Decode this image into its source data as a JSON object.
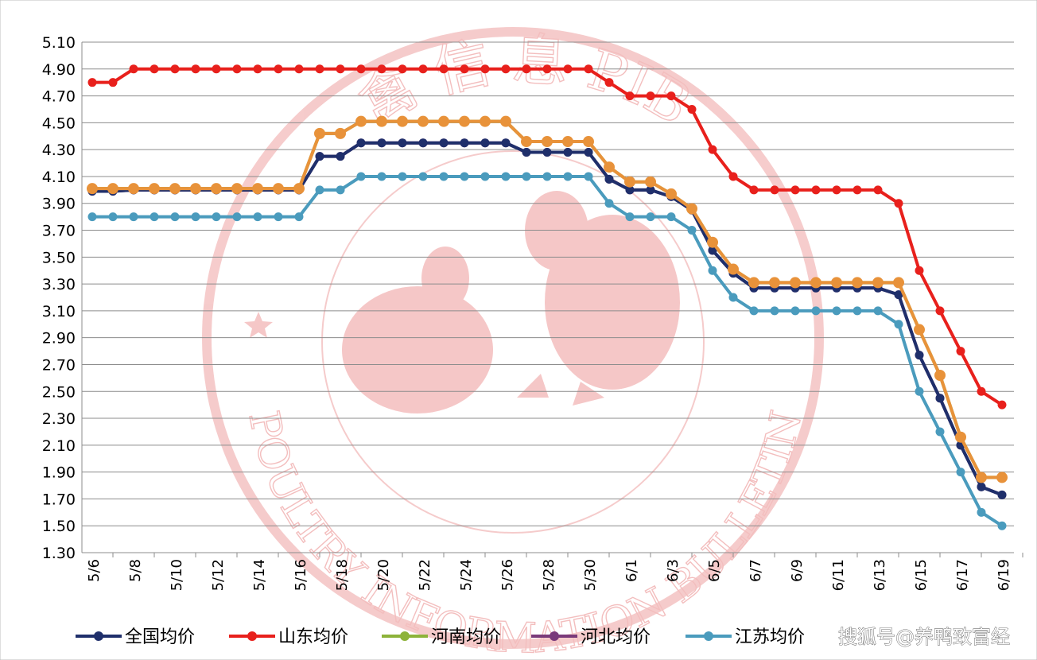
{
  "chart_data": {
    "type": "line",
    "title": "",
    "xlabel": "",
    "ylabel": "",
    "ylim": [
      1.3,
      5.1
    ],
    "yticks": [
      "1.30",
      "1.50",
      "1.70",
      "1.90",
      "2.10",
      "2.30",
      "2.50",
      "2.70",
      "2.90",
      "3.10",
      "3.30",
      "3.50",
      "3.70",
      "3.90",
      "4.10",
      "4.30",
      "4.50",
      "4.70",
      "4.90",
      "5.10"
    ],
    "x": [
      "5/6",
      "5/7",
      "5/8",
      "5/9",
      "5/10",
      "5/11",
      "5/12",
      "5/13",
      "5/14",
      "5/15",
      "5/16",
      "5/17",
      "5/18",
      "5/19",
      "5/20",
      "5/21",
      "5/22",
      "5/23",
      "5/24",
      "5/25",
      "5/26",
      "5/27",
      "5/28",
      "5/29",
      "5/30",
      "5/31",
      "6/1",
      "6/2",
      "6/3",
      "6/4",
      "6/5",
      "6/6",
      "6/7",
      "6/8",
      "6/9",
      "6/10",
      "6/11",
      "6/12",
      "6/13",
      "6/14",
      "6/15",
      "6/16",
      "6/17",
      "6/18",
      "6/19"
    ],
    "xticks": [
      "5/6",
      "5/8",
      "5/10",
      "5/12",
      "5/14",
      "5/16",
      "5/18",
      "5/20",
      "5/22",
      "5/24",
      "5/26",
      "5/28",
      "5/30",
      "6/1",
      "6/3",
      "6/5",
      "6/7",
      "6/9",
      "6/11",
      "6/13",
      "6/15",
      "6/17",
      "6/19"
    ],
    "grid": true,
    "legend_position": "bottom",
    "series": [
      {
        "name": "江苏均价",
        "color": "#4a9bbd",
        "values": [
          3.8,
          3.8,
          3.8,
          3.8,
          3.8,
          3.8,
          3.8,
          3.8,
          3.8,
          3.8,
          3.8,
          4.0,
          4.0,
          4.1,
          4.1,
          4.1,
          4.1,
          4.1,
          4.1,
          4.1,
          4.1,
          4.1,
          4.1,
          4.1,
          4.1,
          3.9,
          3.8,
          3.8,
          3.8,
          3.7,
          3.4,
          3.2,
          3.1,
          3.1,
          3.1,
          3.1,
          3.1,
          3.1,
          3.1,
          3.0,
          2.5,
          2.2,
          1.9,
          1.6,
          1.5
        ]
      },
      {
        "name": "河北均价",
        "color": "#7a3a7a",
        "values": [
          3.99,
          3.99,
          4.0,
          4.0,
          4.0,
          4.0,
          4.0,
          4.0,
          4.0,
          4.0,
          4.0,
          4.25,
          4.25,
          4.35,
          4.35,
          4.35,
          4.35,
          4.35,
          4.35,
          4.35,
          4.35,
          4.28,
          4.28,
          4.28,
          4.28,
          4.08,
          4.0,
          4.0,
          3.95,
          3.85,
          3.55,
          3.38,
          3.27,
          3.27,
          3.27,
          3.27,
          3.27,
          3.27,
          3.27,
          3.22,
          2.77,
          2.45,
          2.1,
          1.79,
          1.73
        ]
      },
      {
        "name": "河南均价",
        "color": "#8db33a",
        "values": [
          4.01,
          4.01,
          4.01,
          4.01,
          4.01,
          4.01,
          4.01,
          4.01,
          4.01,
          4.01,
          4.01,
          4.42,
          4.42,
          4.51,
          4.51,
          4.51,
          4.51,
          4.51,
          4.51,
          4.51,
          4.51,
          4.36,
          4.36,
          4.36,
          4.36,
          4.17,
          4.06,
          4.06,
          3.97,
          3.86,
          3.61,
          3.41,
          3.31,
          3.31,
          3.31,
          3.31,
          3.31,
          3.31,
          3.31,
          3.31,
          2.96,
          2.62,
          2.16,
          1.86,
          1.86
        ]
      },
      {
        "name": "全国均价",
        "color": "#1f2f6b",
        "values": [
          3.99,
          3.99,
          4.0,
          4.0,
          4.0,
          4.0,
          4.0,
          4.0,
          4.0,
          4.0,
          4.0,
          4.25,
          4.25,
          4.35,
          4.35,
          4.35,
          4.35,
          4.35,
          4.35,
          4.35,
          4.35,
          4.28,
          4.28,
          4.28,
          4.28,
          4.08,
          4.0,
          4.0,
          3.95,
          3.85,
          3.55,
          3.38,
          3.27,
          3.27,
          3.27,
          3.27,
          3.27,
          3.27,
          3.27,
          3.22,
          2.77,
          2.45,
          2.1,
          1.79,
          1.73
        ]
      },
      {
        "name": "",
        "color": "#e8923a",
        "values": [
          4.01,
          4.01,
          4.01,
          4.01,
          4.01,
          4.01,
          4.01,
          4.01,
          4.01,
          4.01,
          4.01,
          4.42,
          4.42,
          4.51,
          4.51,
          4.51,
          4.51,
          4.51,
          4.51,
          4.51,
          4.51,
          4.36,
          4.36,
          4.36,
          4.36,
          4.17,
          4.06,
          4.06,
          3.97,
          3.86,
          3.61,
          3.41,
          3.31,
          3.31,
          3.31,
          3.31,
          3.31,
          3.31,
          3.31,
          3.31,
          2.96,
          2.62,
          2.16,
          1.86,
          1.86
        ]
      },
      {
        "name": "山东均价",
        "color": "#e8201c",
        "values": [
          4.8,
          4.8,
          4.9,
          4.9,
          4.9,
          4.9,
          4.9,
          4.9,
          4.9,
          4.9,
          4.9,
          4.9,
          4.9,
          4.9,
          4.9,
          4.9,
          4.9,
          4.9,
          4.9,
          4.9,
          4.9,
          4.9,
          4.9,
          4.9,
          4.9,
          4.8,
          4.7,
          4.7,
          4.7,
          4.6,
          4.3,
          4.1,
          4.0,
          4.0,
          4.0,
          4.0,
          4.0,
          4.0,
          4.0,
          3.9,
          3.4,
          3.1,
          2.8,
          2.5,
          2.4
        ]
      }
    ],
    "legend": [
      {
        "name": "全国均价",
        "color": "#1f2f6b"
      },
      {
        "name": "山东均价",
        "color": "#e8201c"
      },
      {
        "name": "河南均价",
        "color": "#8db33a"
      },
      {
        "name": "河北均价",
        "color": "#7a3a7a"
      },
      {
        "name": "江苏均价",
        "color": "#4a9bbd"
      }
    ]
  },
  "watermark": {
    "top_text": "禽 信 息 PIB",
    "bottom_text": "POULTRY INFORMATION BULLETIN",
    "color": "#f2b8b8"
  },
  "credit": "搜狐号@养鸭致富经"
}
